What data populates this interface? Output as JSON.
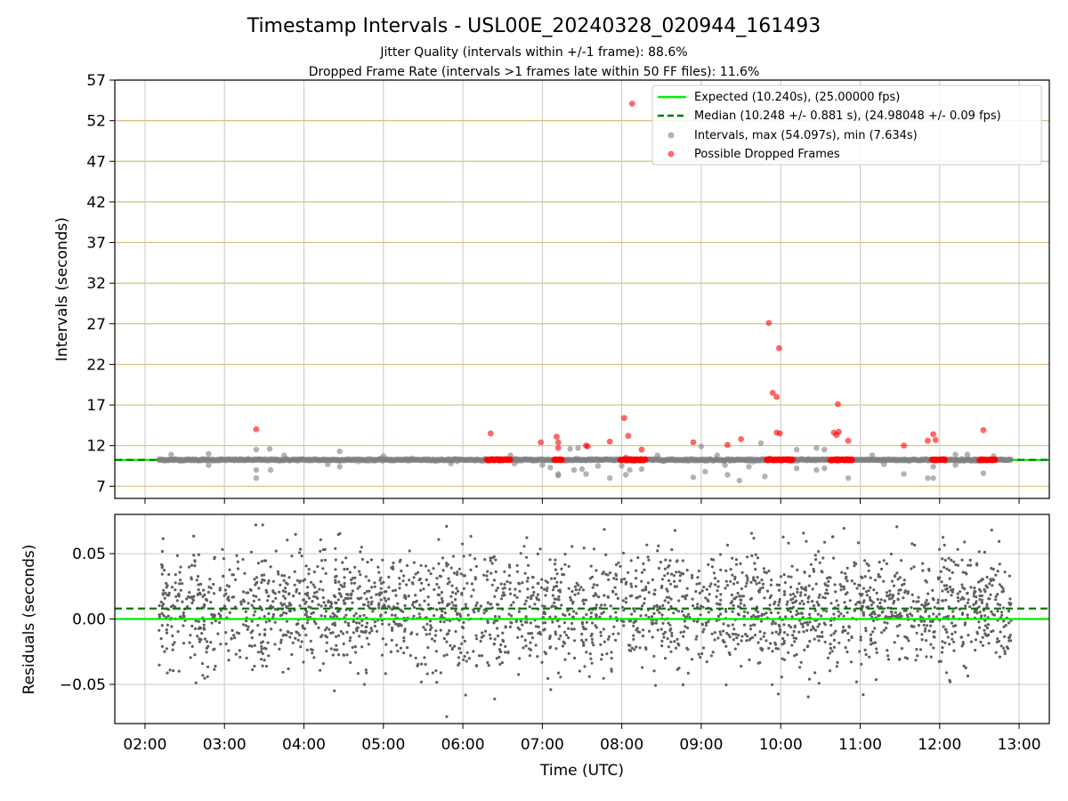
{
  "chart_data": [
    {
      "type": "scatter",
      "title": "Timestamp Intervals - USL00E_20240328_020944_161493",
      "subtitle_lines": [
        "Jitter Quality (intervals within +/-1 frame): 88.6%",
        "Dropped Frame Rate (intervals >1 frames late within 50 FF files): 11.6%"
      ],
      "xlabel": "",
      "ylabel": "Intervals (seconds)",
      "xlim_hours": [
        1.62,
        13.38
      ],
      "ylim": [
        5.5,
        57
      ],
      "yticks": [
        7,
        12,
        17,
        22,
        27,
        32,
        37,
        42,
        47,
        52,
        57
      ],
      "xticks_hours": [
        2,
        3,
        4,
        5,
        6,
        7,
        8,
        9,
        10,
        11,
        12,
        13
      ],
      "xtick_labels": [
        "02:00",
        "03:00",
        "04:00",
        "05:00",
        "06:00",
        "07:00",
        "08:00",
        "09:00",
        "10:00",
        "11:00",
        "12:00",
        "13:00"
      ],
      "grid": true,
      "legend_position": "top-right",
      "legend": [
        "Expected (10.240s), (25.00000 fps)",
        "Median (10.248 +/- 0.881 s), (24.98048 +/- 0.09 fps)",
        "Intervals, max (54.097s), min (7.634s)",
        "Possible Dropped Frames"
      ],
      "expected": 10.24,
      "median": 10.248,
      "time_range_hours": [
        2.17,
        12.9
      ],
      "series": [
        {
          "name": "Intervals, max (54.097s), min (7.634s)",
          "color": "#808080",
          "points": [
            [
              2.33,
              10.9
            ],
            [
              2.8,
              11.0
            ],
            [
              2.8,
              9.6
            ],
            [
              3.4,
              11.5
            ],
            [
              3.4,
              9.0
            ],
            [
              3.4,
              8.0
            ],
            [
              3.57,
              11.6
            ],
            [
              3.58,
              9.0
            ],
            [
              3.75,
              10.8
            ],
            [
              4.3,
              9.7
            ],
            [
              4.45,
              11.3
            ],
            [
              4.45,
              9.4
            ],
            [
              5.0,
              10.7
            ],
            [
              5.85,
              9.8
            ],
            [
              6.3,
              10.3
            ],
            [
              6.6,
              10.8
            ],
            [
              6.65,
              9.8
            ],
            [
              7.0,
              9.6
            ],
            [
              7.1,
              9.3
            ],
            [
              7.2,
              8.3
            ],
            [
              7.2,
              8.5
            ],
            [
              7.35,
              11.6
            ],
            [
              7.4,
              9.0
            ],
            [
              7.45,
              11.7
            ],
            [
              7.5,
              9.1
            ],
            [
              7.55,
              8.5
            ],
            [
              7.7,
              9.5
            ],
            [
              7.85,
              8.0
            ],
            [
              8.0,
              9.5
            ],
            [
              8.05,
              8.4
            ],
            [
              8.1,
              9.0
            ],
            [
              8.25,
              9.1
            ],
            [
              8.45,
              10.8
            ],
            [
              8.9,
              8.1
            ],
            [
              9.0,
              11.9
            ],
            [
              9.05,
              8.8
            ],
            [
              9.2,
              10.8
            ],
            [
              9.3,
              9.6
            ],
            [
              9.33,
              8.4
            ],
            [
              9.48,
              7.7
            ],
            [
              9.6,
              9.4
            ],
            [
              9.75,
              12.3
            ],
            [
              9.8,
              8.2
            ],
            [
              10.2,
              11.5
            ],
            [
              10.2,
              9.2
            ],
            [
              10.45,
              11.7
            ],
            [
              10.45,
              9.0
            ],
            [
              10.55,
              9.2
            ],
            [
              10.55,
              11.5
            ],
            [
              10.85,
              8.0
            ],
            [
              11.15,
              10.8
            ],
            [
              11.3,
              9.7
            ],
            [
              11.55,
              8.5
            ],
            [
              11.85,
              8.0
            ],
            [
              11.92,
              8.0
            ],
            [
              11.92,
              9.4
            ],
            [
              12.2,
              10.9
            ],
            [
              12.2,
              9.6
            ],
            [
              12.35,
              10.9
            ],
            [
              12.55,
              8.6
            ],
            [
              12.68,
              10.7
            ]
          ]
        },
        {
          "name": "Possible Dropped Frames",
          "color": "#ff0000",
          "points": [
            [
              3.4,
              14.0
            ],
            [
              6.35,
              13.5
            ],
            [
              6.98,
              12.4
            ],
            [
              7.18,
              13.1
            ],
            [
              7.2,
              12.4
            ],
            [
              7.2,
              11.7
            ],
            [
              7.55,
              12.0
            ],
            [
              7.57,
              11.9
            ],
            [
              7.85,
              12.5
            ],
            [
              8.03,
              15.4
            ],
            [
              8.08,
              13.2
            ],
            [
              8.13,
              54.1
            ],
            [
              8.25,
              11.5
            ],
            [
              8.05,
              10.5
            ],
            [
              8.9,
              12.4
            ],
            [
              9.33,
              12.1
            ],
            [
              9.5,
              12.8
            ],
            [
              9.85,
              27.1
            ],
            [
              9.9,
              18.5
            ],
            [
              9.95,
              18.0
            ],
            [
              9.95,
              13.6
            ],
            [
              9.98,
              24.0
            ],
            [
              9.99,
              13.5
            ],
            [
              10.67,
              13.6
            ],
            [
              10.7,
              13.3
            ],
            [
              10.73,
              13.7
            ],
            [
              10.72,
              17.1
            ],
            [
              10.85,
              12.6
            ],
            [
              11.55,
              12.0
            ],
            [
              11.85,
              12.6
            ],
            [
              11.92,
              13.4
            ],
            [
              11.95,
              12.7
            ],
            [
              12.55,
              13.9
            ]
          ],
          "dense_runs_hours": [
            [
              6.3,
              6.6
            ],
            [
              7.15,
              7.25
            ],
            [
              7.98,
              8.3
            ],
            [
              9.82,
              10.15
            ],
            [
              10.62,
              10.9
            ],
            [
              11.9,
              12.07
            ],
            [
              12.5,
              12.7
            ]
          ],
          "dense_run_value": 10.25
        }
      ]
    },
    {
      "type": "scatter",
      "title": "",
      "xlabel": "Time (UTC)",
      "ylabel": "Residuals (seconds)",
      "xlim_hours": [
        1.62,
        13.38
      ],
      "ylim": [
        -0.08,
        0.08
      ],
      "yticks": [
        -0.05,
        0.0,
        0.05
      ],
      "ytick_labels": [
        "−0.05",
        "0.00",
        "0.05"
      ],
      "xticks_hours": [
        2,
        3,
        4,
        5,
        6,
        7,
        8,
        9,
        10,
        11,
        12,
        13
      ],
      "xtick_labels": [
        "02:00",
        "03:00",
        "04:00",
        "05:00",
        "06:00",
        "07:00",
        "08:00",
        "09:00",
        "10:00",
        "11:00",
        "12:00",
        "13:00"
      ],
      "grid": true,
      "expected_residual": 0.0,
      "median_residual": 0.008,
      "residual_spread_sd": 0.022,
      "residual_point_count": 2600,
      "series": [
        {
          "name": "",
          "color": "#606060"
        }
      ]
    }
  ],
  "colors": {
    "expected_line": "#00ee00",
    "median_line": "#007a00",
    "grid_vertical": "#c8c8c8",
    "grid_horizontal_top": "#d4c27a",
    "grid_horizontal_bottom": "#c8c8c8"
  }
}
